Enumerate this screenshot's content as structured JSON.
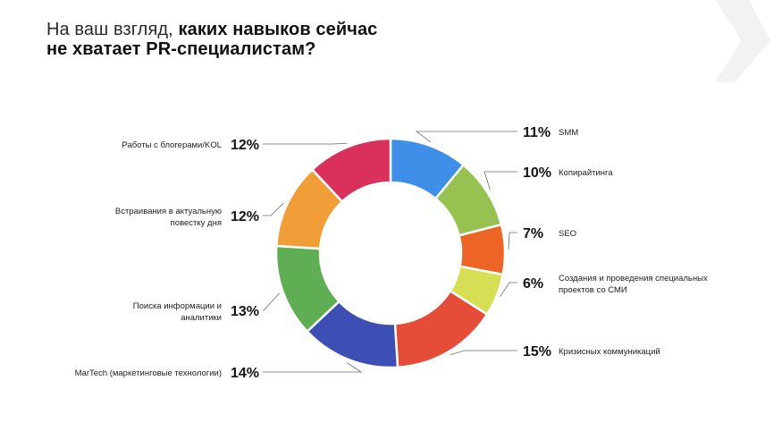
{
  "title": {
    "line1_light": "На ваш взгляд,",
    "line1_bold": "каких навыков сейчас",
    "line2_bold": "не хватает PR-специалистам?"
  },
  "decor_icon": "chevron-right-icon",
  "colors": {
    "leader": "#6e6e6e",
    "chevron": "#f1f1f1"
  },
  "chart_data": {
    "type": "pie",
    "donut": true,
    "unit": "%",
    "slices": [
      {
        "label": "SMM",
        "value": 11,
        "pct_label": "11%",
        "color": "#3f8fe8"
      },
      {
        "label": "Копирайтинга",
        "value": 10,
        "pct_label": "10%",
        "color": "#97c150"
      },
      {
        "label": "SEO",
        "value": 7,
        "pct_label": "7%",
        "color": "#ec6527"
      },
      {
        "label": "Создания и проведения специальных проектов со СМИ",
        "label_lines": [
          "Создания и проведения специальных",
          "проектов со СМИ"
        ],
        "value": 6,
        "pct_label": "6%",
        "color": "#d6df53"
      },
      {
        "label": "Кризисных коммуникаций",
        "value": 15,
        "pct_label": "15%",
        "color": "#e54d39"
      },
      {
        "label": "MarTech (маркетинговые технологии)",
        "value": 14,
        "pct_label": "14%",
        "color": "#3d4fb5"
      },
      {
        "label": "Поиска информации и аналитики",
        "label_lines": [
          "Поиска информации и",
          "аналитики"
        ],
        "value": 13,
        "pct_label": "13%",
        "color": "#5fae54"
      },
      {
        "label": "Встраивания в актуальную повестку дня",
        "label_lines": [
          "Встраивания в актуальную",
          "повестку дня"
        ],
        "value": 12,
        "pct_label": "12%",
        "color": "#f19e38"
      },
      {
        "label": "Работы с блогерами/KOL",
        "value": 12,
        "pct_label": "12%",
        "color": "#d9305c"
      }
    ]
  }
}
